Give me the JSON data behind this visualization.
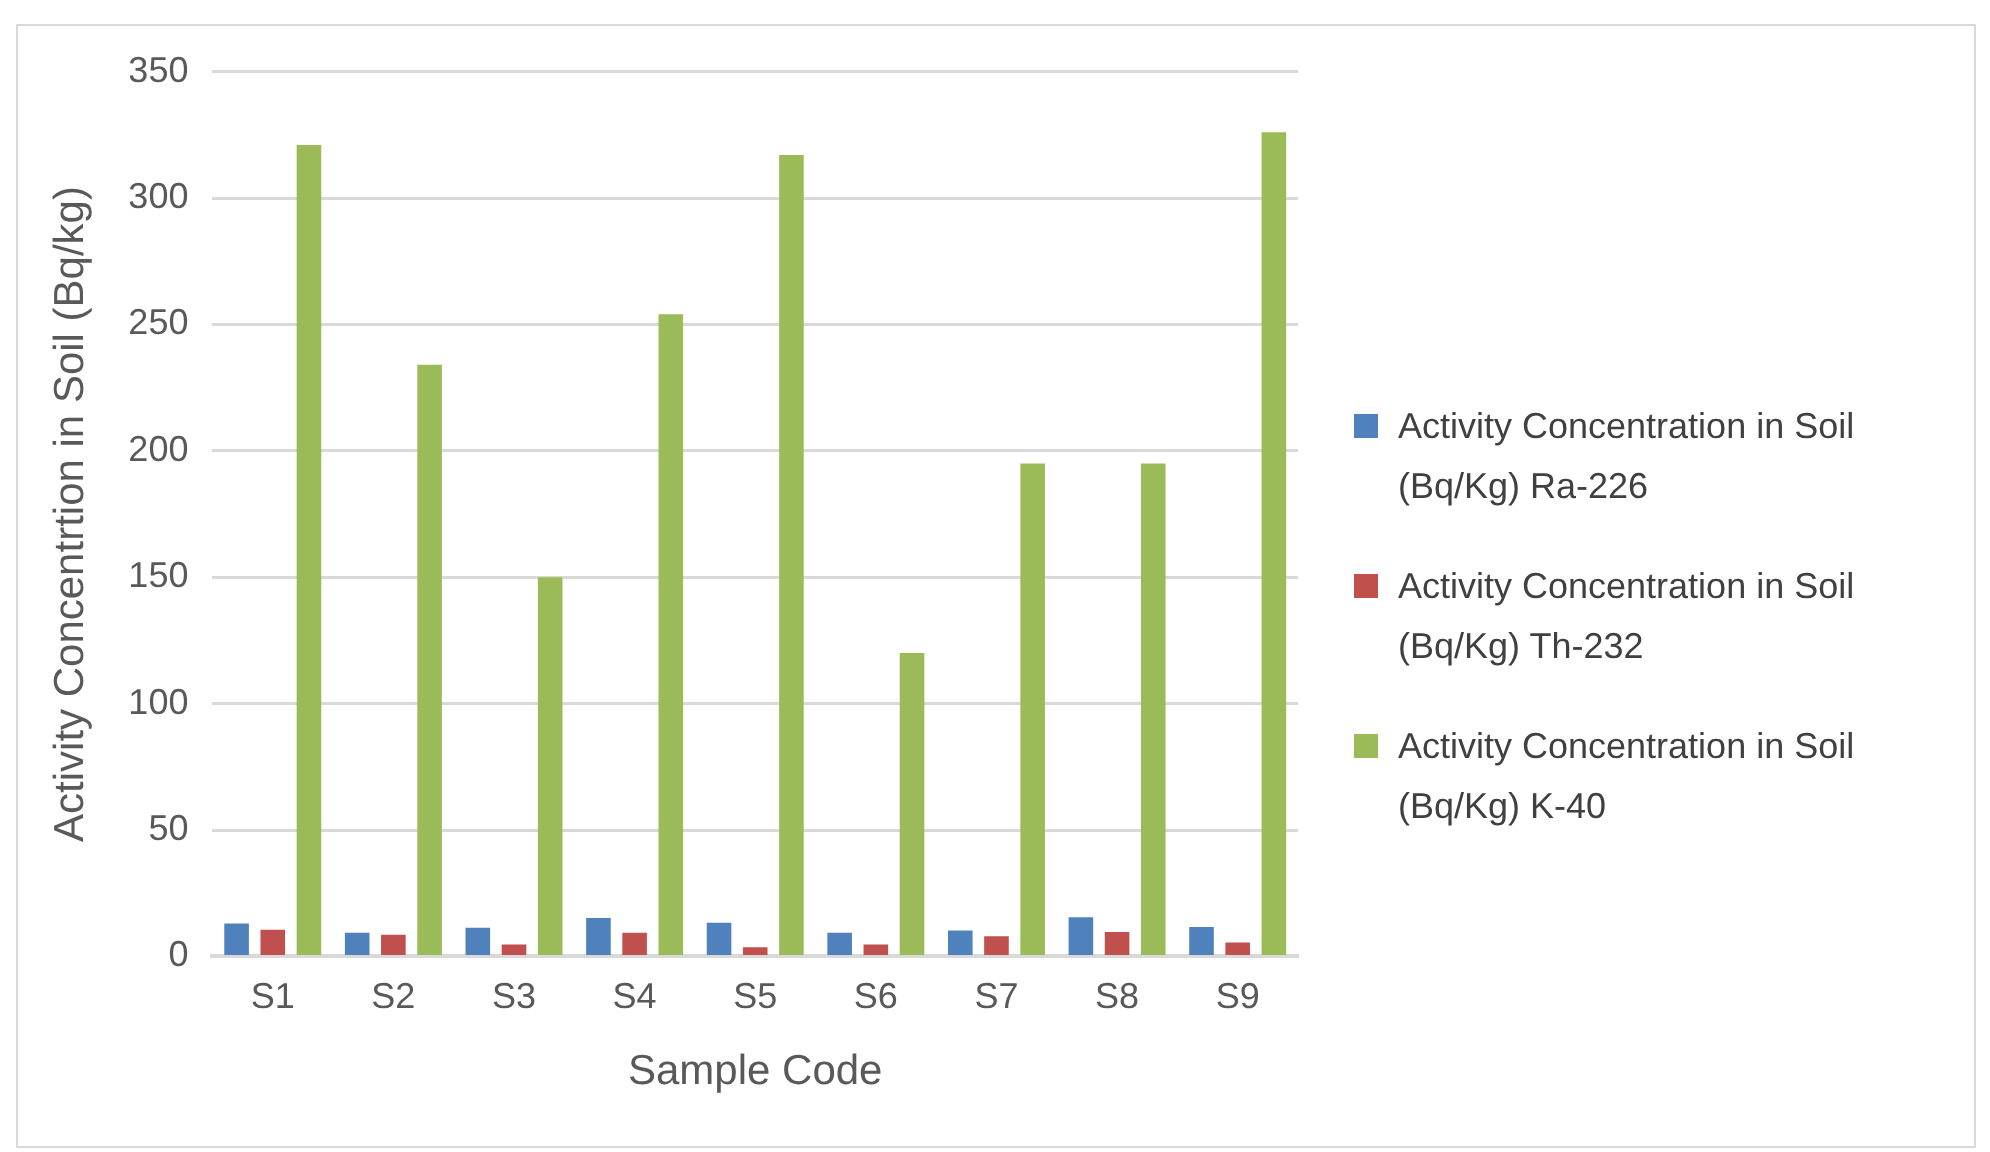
{
  "chart_data": {
    "type": "bar",
    "xlabel": "Sample Code",
    "ylabel": "Activity Concentrtion in Soil (Bq/kg)",
    "categories": [
      "S1",
      "S2",
      "S3",
      "S4",
      "S5",
      "S6",
      "S7",
      "S8",
      "S9"
    ],
    "series": [
      {
        "name": "Activity Concentration in Soil (Bq/Kg) Ra-226",
        "color": "#4f81bd",
        "values": [
          13,
          9.4,
          11.3,
          15.2,
          13.3,
          9.4,
          10.2,
          15.5,
          11.6
        ]
      },
      {
        "name": "Activity Concentration in Soil (Bq/Kg) Th-232",
        "color": "#c0504d",
        "values": [
          10.5,
          8.6,
          4.7,
          9.4,
          3.6,
          4.7,
          8,
          9.7,
          5.5
        ]
      },
      {
        "name": "Activity Concentration in Soil (Bq/Kg) K-40",
        "color": "#9bbb59",
        "values": [
          321,
          234,
          150,
          254,
          317,
          120,
          195,
          195,
          326
        ]
      }
    ],
    "ylim": [
      0,
      350
    ],
    "yticks": [
      0,
      50,
      100,
      150,
      200,
      250,
      300,
      350
    ],
    "grid": "y",
    "legend": "right"
  }
}
